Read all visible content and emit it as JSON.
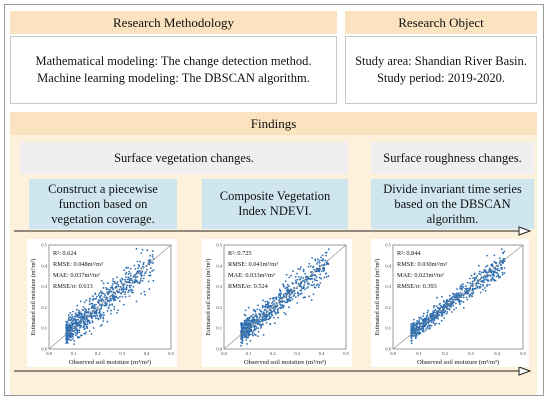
{
  "methodology": {
    "header": "Research Methodology",
    "lines": [
      "Mathematical modeling: The change detection method.",
      "Machine learning modeling: The DBSCAN algorithm."
    ]
  },
  "object": {
    "header": "Research Object",
    "lines": [
      "Study area: Shandian River Basin.",
      "Study period: 2019-2020."
    ]
  },
  "findings": {
    "header": "Findings",
    "vegetation": "Surface vegetation changes.",
    "roughness": "Surface roughness changes.",
    "steps": [
      [
        "Construct a piecewise",
        "function based on",
        "vegetation coverage."
      ],
      [
        "Composite Vegetation",
        "Index NDEVI."
      ],
      [
        "Divide invariant time series",
        "based on the DBSCAN",
        "algorithm."
      ]
    ]
  },
  "plots": [
    {
      "r2": "R²: 0.624",
      "rmse": "RMSE: 0.048m³/m³",
      "mae": "MAE: 0.037m³/m³",
      "rmse_sigma": "RMSE/σ: 0.613"
    },
    {
      "r2": "R²: 0.725",
      "rmse": "RMSE: 0.041m³/m³",
      "mae": "MAE: 0.033m³/m³",
      "rmse_sigma": "RMSE/σ: 0.524"
    },
    {
      "r2": "R²: 0.844",
      "rmse": "RMSE: 0.030m³/m³",
      "mae": "MAE: 0.023m³/m³",
      "rmse_sigma": "RMSE/σ: 0.393"
    }
  ],
  "axes": {
    "xlabel": "Observed soil moisture (m³/m³)",
    "ylabel": "Estimated soil moisture (m³/m³)",
    "ticks": [
      "0.0",
      "0.1",
      "0.2",
      "0.3",
      "0.4",
      "0.5"
    ]
  },
  "chart_data": {
    "type": "scatter",
    "xlabel": "Observed soil moisture (m³/m³)",
    "ylabel": "Estimated soil moisture (m³/m³)",
    "xlim": [
      0,
      0.5
    ],
    "ylim": [
      0,
      0.5
    ],
    "series": [
      {
        "scatter_sd": 0.048,
        "n_points": 700
      },
      {
        "scatter_sd": 0.041,
        "n_points": 700
      },
      {
        "scatter_sd": 0.03,
        "n_points": 700
      }
    ]
  },
  "colors": {
    "point": "#2f6fb0",
    "header": "#fbe3bf",
    "findings_bg": "#fdf1dc",
    "step_bg": "#cfe6f0",
    "gray_bg": "#efefef"
  }
}
